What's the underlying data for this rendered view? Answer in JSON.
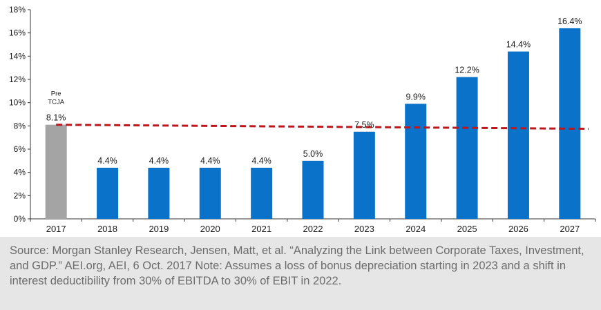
{
  "chart_data": {
    "type": "bar",
    "categories": [
      "2017",
      "2018",
      "2019",
      "2020",
      "2021",
      "2022",
      "2023",
      "2024",
      "2025",
      "2026",
      "2027"
    ],
    "values": [
      8.1,
      4.4,
      4.4,
      4.4,
      4.4,
      5.0,
      7.5,
      9.9,
      12.2,
      14.4,
      16.4
    ],
    "data_labels": [
      "8.1%",
      "4.4%",
      "4.4%",
      "4.4%",
      "4.4%",
      "5.0%",
      "7.5%",
      "9.9%",
      "12.2%",
      "14.4%",
      "16.4%"
    ],
    "highlight_annotation": {
      "category": "2017",
      "lines": [
        "Pre",
        "TCJA"
      ]
    },
    "ylim": [
      0,
      18
    ],
    "yticks": [
      0,
      2,
      4,
      6,
      8,
      10,
      12,
      14,
      16,
      18
    ],
    "ytick_labels": [
      "0%",
      "2%",
      "4%",
      "6%",
      "8%",
      "10%",
      "12%",
      "14%",
      "16%",
      "18%"
    ],
    "reference_line": {
      "value": 8.1,
      "style": "dashed",
      "color": "#c0161b"
    },
    "grid": false,
    "colors": {
      "bar": "#0b72c9",
      "highlight_bar": "#a5a4a4"
    },
    "title": "",
    "xlabel": "",
    "ylabel": ""
  },
  "source_note": "Source: Morgan Stanley Research, Jensen, Matt, et al. “Analyzing the Link between Corporate Taxes, Investment, and GDP.” AEI.org, AEI, 6 Oct. 2017 Note: Assumes a loss of bonus depreciation starting in 2023 and a shift in interest deductibility from 30% of EBITDA to 30% of EBIT in 2022."
}
